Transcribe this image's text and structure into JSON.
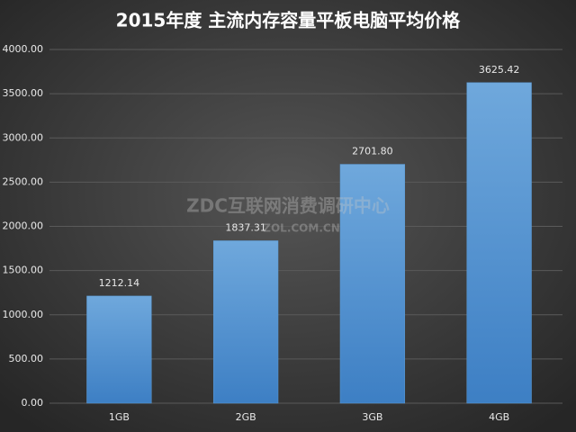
{
  "chart_data": {
    "type": "bar",
    "title": "2015年度 主流内存容量平板电脑平均价格",
    "categories": [
      "1GB",
      "2GB",
      "3GB",
      "4GB"
    ],
    "values": [
      1212.14,
      1837.31,
      2701.8,
      3625.42
    ],
    "value_labels": [
      "1212.14",
      "1837.31",
      "2701.80",
      "3625.42"
    ],
    "color": "#5b9bd5",
    "ylim": [
      0,
      4000
    ],
    "yticks": [
      {
        "value": 0,
        "label": "0.00"
      },
      {
        "value": 500,
        "label": "500.00"
      },
      {
        "value": 1000,
        "label": "1000.00"
      },
      {
        "value": 1500,
        "label": "1500.00"
      },
      {
        "value": 2000,
        "label": "2000.00"
      },
      {
        "value": 2500,
        "label": "2500.00"
      },
      {
        "value": 3000,
        "label": "3000.00"
      },
      {
        "value": 3500,
        "label": "3500.00"
      },
      {
        "value": 4000,
        "label": "4000.00"
      }
    ],
    "grid": true,
    "watermark": [
      "ZDC互联网消费调研中心",
      "ZOL.COM.CN"
    ]
  }
}
